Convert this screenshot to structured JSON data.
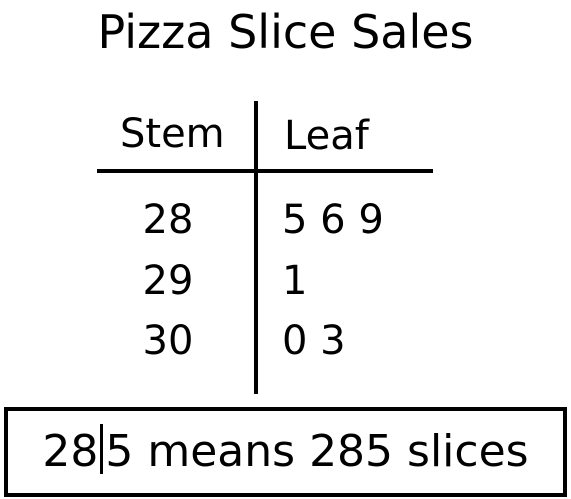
{
  "chart_data": {
    "type": "table",
    "title": "Pizza Slice Sales",
    "headers": {
      "stem": "Stem",
      "leaf": "Leaf"
    },
    "rows": [
      {
        "stem": "28",
        "leaves": "5 6 9"
      },
      {
        "stem": "29",
        "leaves": "1"
      },
      {
        "stem": "30",
        "leaves": "0 3"
      }
    ],
    "values": [
      285,
      286,
      289,
      291,
      300,
      303
    ],
    "key": {
      "stem": "28",
      "leaf_and_meaning": "5 means 285 slices"
    }
  }
}
